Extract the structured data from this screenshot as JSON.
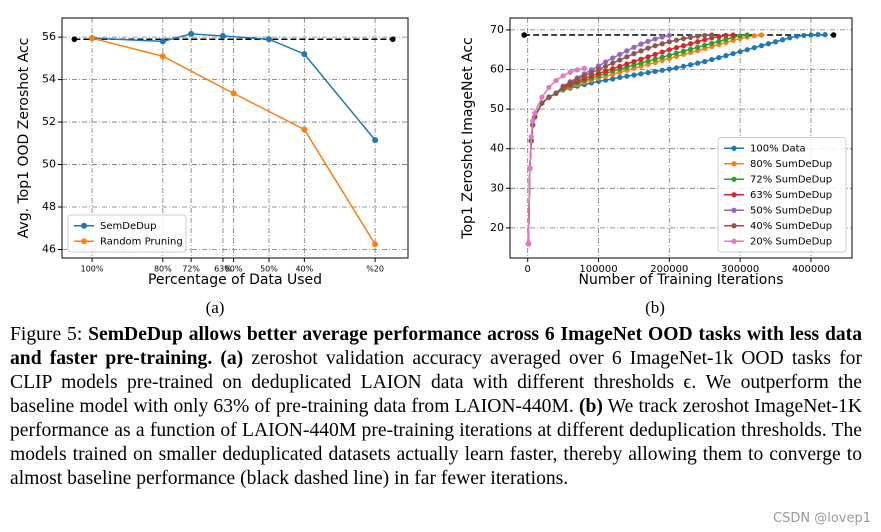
{
  "chart_data": [
    {
      "type": "line",
      "y_label": "Avg. Top1 OOD Zeroshot Acc",
      "x_label": "Percentage of Data Used",
      "xlim": [
        108.5,
        10.7
      ],
      "xticks": [
        {
          "value": 100,
          "label": "100%"
        },
        {
          "value": 80,
          "label": "80%"
        },
        {
          "value": 72,
          "label": "72%"
        },
        {
          "value": 63,
          "label": "63%"
        },
        {
          "value": 60,
          "label": "60%"
        },
        {
          "value": 50,
          "label": "50%"
        },
        {
          "value": 40,
          "label": "40%"
        },
        {
          "value": 20,
          "label": "%20"
        }
      ],
      "ylim": [
        45.6,
        56.9
      ],
      "yticks": [
        46,
        48,
        50,
        52,
        54,
        56
      ],
      "grid": true,
      "legend": "lower left",
      "baseline": {
        "x": [
          105,
          15
        ],
        "values": [
          55.9,
          55.9
        ],
        "color": "#000000"
      },
      "series": [
        {
          "name": "SemDeDup",
          "color": "#1f77b4",
          "x": [
            100,
            80,
            72,
            63,
            50,
            40,
            20
          ],
          "values": [
            55.95,
            55.8,
            56.15,
            56.05,
            55.9,
            55.2,
            51.15
          ]
        },
        {
          "name": "Random Pruning",
          "color": "#ff7f0e",
          "x": [
            100,
            80,
            60,
            40,
            20
          ],
          "values": [
            55.95,
            55.1,
            53.35,
            51.65,
            46.25
          ]
        }
      ]
    },
    {
      "type": "line",
      "y_label": "Top1 Zeroshot ImageNet Acc",
      "x_label": "Number of Training Iterations",
      "xlim": [
        -25000,
        458000
      ],
      "xticks": [
        0,
        100000,
        200000,
        300000,
        400000
      ],
      "ylim": [
        12.4,
        73
      ],
      "yticks": [
        20,
        30,
        40,
        50,
        60,
        70
      ],
      "grid": true,
      "legend": "lower right",
      "baseline": {
        "x": [
          -5000,
          432000
        ],
        "values": [
          68.7,
          68.7
        ],
        "color": "#000000"
      },
      "series": [
        {
          "name": "100% Data",
          "color": "#1f77b4",
          "x": [
            1000,
            3000,
            5000,
            7000,
            10000,
            20000,
            30000,
            40000,
            50000,
            60000,
            70000,
            80000,
            90000,
            100000,
            110000,
            120000,
            130000,
            140000,
            150000,
            160000,
            170000,
            180000,
            190000,
            200000,
            210000,
            220000,
            230000,
            240000,
            250000,
            260000,
            270000,
            280000,
            290000,
            300000,
            310000,
            320000,
            330000,
            340000,
            350000,
            360000,
            370000,
            380000,
            390000,
            400000,
            410000,
            420000
          ],
          "values": [
            16,
            35,
            42,
            46,
            48,
            51.5,
            53,
            54,
            54.8,
            55.3,
            55.8,
            56.2,
            56.6,
            57,
            57.3,
            57.6,
            58,
            58.3,
            58.6,
            58.9,
            59.2,
            59.5,
            59.8,
            60.1,
            60.4,
            60.8,
            61.2,
            61.6,
            62,
            62.5,
            63,
            63.5,
            64,
            64.5,
            65,
            65.5,
            66,
            66.5,
            67,
            67.5,
            68,
            68.4,
            68.6,
            68.7,
            68.8,
            68.8
          ]
        },
        {
          "name": "80% SumDeDup",
          "color": "#ff7f0e",
          "x": [
            1000,
            3000,
            5000,
            7000,
            10000,
            20000,
            30000,
            40000,
            50000,
            60000,
            70000,
            80000,
            90000,
            100000,
            110000,
            120000,
            130000,
            140000,
            150000,
            160000,
            170000,
            180000,
            190000,
            200000,
            210000,
            220000,
            230000,
            240000,
            250000,
            260000,
            270000,
            280000,
            290000,
            300000,
            310000,
            320000,
            330000
          ],
          "values": [
            16,
            35,
            42,
            46,
            48,
            51.5,
            53,
            54,
            55,
            55.6,
            56.2,
            56.8,
            57.3,
            57.8,
            58.3,
            58.8,
            59.3,
            59.8,
            60.3,
            60.8,
            61.3,
            61.8,
            62.3,
            62.8,
            63.3,
            63.8,
            64.3,
            64.8,
            65.3,
            65.8,
            66.3,
            66.8,
            67.3,
            67.8,
            68.2,
            68.5,
            68.7
          ]
        },
        {
          "name": "72% SumDeDup",
          "color": "#2ca02c",
          "x": [
            1000,
            3000,
            5000,
            7000,
            10000,
            20000,
            30000,
            40000,
            50000,
            60000,
            70000,
            80000,
            90000,
            100000,
            110000,
            120000,
            130000,
            140000,
            150000,
            160000,
            170000,
            180000,
            190000,
            200000,
            210000,
            220000,
            230000,
            240000,
            250000,
            260000,
            270000,
            280000,
            290000,
            300000,
            310000
          ],
          "values": [
            16,
            35,
            42,
            46,
            48,
            51.5,
            53,
            54,
            55.2,
            55.9,
            56.6,
            57.2,
            57.8,
            58.4,
            59,
            59.6,
            60.1,
            60.6,
            61.1,
            61.6,
            62.1,
            62.6,
            63.1,
            63.6,
            64.1,
            64.6,
            65.1,
            65.6,
            66.1,
            66.6,
            67.1,
            67.6,
            68.1,
            68.5,
            68.7
          ]
        },
        {
          "name": "63% SumDeDup",
          "color": "#d62728",
          "x": [
            1000,
            3000,
            5000,
            7000,
            10000,
            20000,
            30000,
            40000,
            50000,
            60000,
            70000,
            80000,
            90000,
            100000,
            110000,
            120000,
            130000,
            140000,
            150000,
            160000,
            170000,
            180000,
            190000,
            200000,
            210000,
            220000,
            230000,
            240000,
            250000,
            260000,
            270000,
            280000,
            290000
          ],
          "values": [
            16,
            35,
            42,
            46,
            48,
            51.5,
            53,
            54,
            55.4,
            56.2,
            57,
            57.7,
            58.4,
            59,
            59.6,
            60.2,
            60.8,
            61.4,
            62,
            62.6,
            63.2,
            63.8,
            64.4,
            65,
            65.5,
            66,
            66.5,
            67,
            67.5,
            68,
            68.3,
            68.6,
            68.7
          ]
        },
        {
          "name": "50% SumDeDup",
          "color": "#9467bd",
          "x": [
            1000,
            3000,
            5000,
            7000,
            10000,
            20000,
            30000,
            40000,
            50000,
            60000,
            70000,
            80000,
            90000,
            100000,
            110000,
            120000,
            130000,
            140000,
            150000,
            160000,
            170000,
            180000,
            190000,
            200000
          ],
          "values": [
            16,
            35,
            42,
            46,
            48,
            51.5,
            53,
            54,
            55.8,
            56.9,
            57.9,
            58.9,
            59.9,
            60.9,
            61.9,
            62.9,
            63.8,
            64.7,
            65.6,
            66.4,
            67.1,
            67.7,
            68.2,
            68.6
          ]
        },
        {
          "name": "40% SumDeDup",
          "color": "#8c564b",
          "x": [
            1000,
            3000,
            5000,
            7000,
            10000,
            20000,
            30000,
            40000,
            50000,
            60000,
            70000,
            80000,
            90000,
            100000,
            110000,
            120000,
            130000,
            140000,
            150000,
            160000,
            170000,
            180000,
            190000,
            200000,
            210000,
            220000,
            230000,
            240000,
            250000,
            260000
          ],
          "values": [
            16,
            35,
            42,
            46,
            48,
            51.5,
            53,
            54,
            55.6,
            56.6,
            57.5,
            58.4,
            59.2,
            60,
            60.8,
            61.6,
            62.4,
            63.2,
            64,
            64.7,
            65.4,
            66,
            66.5,
            67,
            67.4,
            67.8,
            68.1,
            68.4,
            68.6,
            68.7
          ]
        },
        {
          "name": "20% SumDeDup",
          "color": "#e377c2",
          "x": [
            1000,
            3000,
            5000,
            7000,
            10000,
            20000,
            30000,
            40000,
            50000,
            60000,
            70000,
            80000
          ],
          "values": [
            16,
            35,
            43,
            47,
            49,
            53,
            55.5,
            57.2,
            58.4,
            59.3,
            59.9,
            60.3
          ]
        }
      ]
    }
  ],
  "panel_labels": [
    "(a)",
    "(b)"
  ],
  "caption": {
    "runs": [
      {
        "text": "Figure 5: ",
        "bold": false
      },
      {
        "text": "SemDeDup allows better average performance across 6 ImageNet OOD tasks with less data and faster pre-training.",
        "bold": true
      },
      {
        "text": " ",
        "bold": false
      },
      {
        "text": "(a)",
        "bold": true
      },
      {
        "text": " zeroshot validation accuracy averaged over 6 ImageNet-1k OOD tasks for CLIP models pre-trained on deduplicated LAION data with different thresholds ϵ. We outperform the baseline model with only 63% of pre-training data from LAION-440M. ",
        "bold": false
      },
      {
        "text": "(b)",
        "bold": true
      },
      {
        "text": " We track zeroshot ImageNet-1K performance as a function of LAION-440M pre-training iterations at different deduplication thresholds. The models trained on smaller deduplicated datasets actually learn faster, thereby allowing them to converge to almost baseline performance (black dashed line) in far fewer iterations.",
        "bold": false
      }
    ]
  },
  "watermark": "CSDN @lovep1"
}
